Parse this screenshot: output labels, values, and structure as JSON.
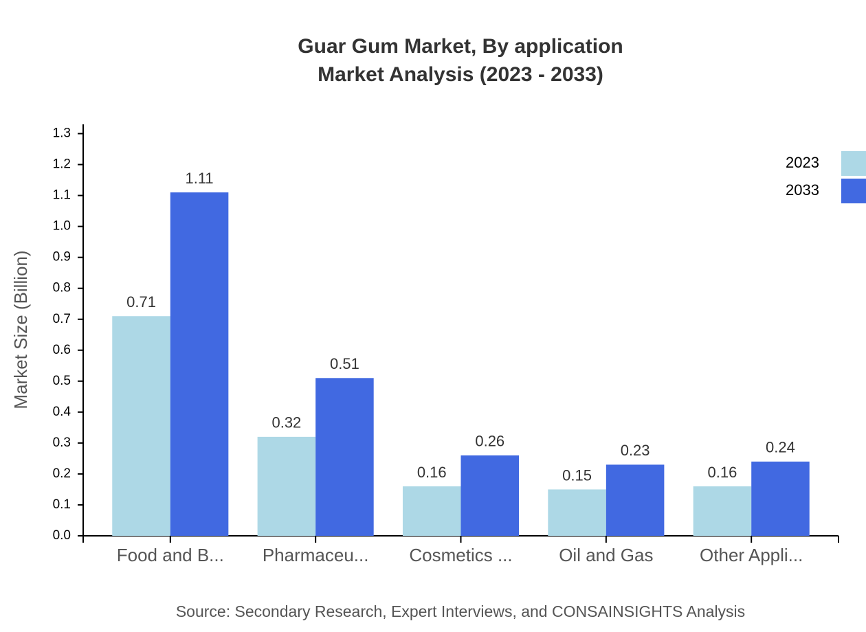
{
  "chart_data": {
    "type": "bar",
    "title": [
      "Guar Gum Market, By application",
      "Market Analysis (2023 - 2033)"
    ],
    "y_label": "Market Size (Billion)",
    "source": "Source: Secondary Research, Expert Interviews, and CONSAINSIGHTS Analysis",
    "categories": [
      "Food and B...",
      "Pharmaceu...",
      "Cosmetics ...",
      "Oil and Gas",
      "Other Appli..."
    ],
    "series": [
      {
        "name": "2023",
        "color": "#add8e6",
        "values": [
          0.71,
          0.32,
          0.16,
          0.15,
          0.16
        ]
      },
      {
        "name": "2033",
        "color": "#4169e1",
        "values": [
          1.11,
          0.51,
          0.26,
          0.23,
          0.24
        ]
      }
    ],
    "ylim": [
      0,
      1.33
    ],
    "yticks": [
      {
        "value": 0,
        "label": "0.0"
      },
      0.1,
      0.2,
      0.3,
      0.4,
      0.5,
      0.6,
      0.7,
      0.8,
      0.9,
      {
        "value": 1,
        "label": "1.0"
      },
      1.1,
      1.2,
      1.3
    ],
    "legend": "top-right"
  }
}
